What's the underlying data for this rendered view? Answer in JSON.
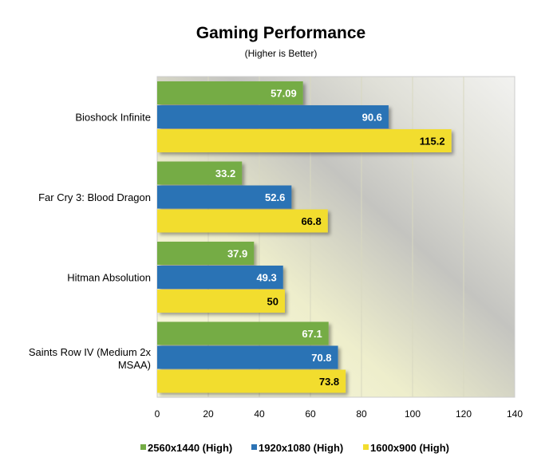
{
  "chart_data": {
    "type": "bar",
    "orientation": "horizontal",
    "title": "Gaming Performance",
    "subtitle": "(Higher is Better)",
    "categories": [
      "Bioshock Infinite",
      "Far Cry 3: Blood Dragon",
      "Hitman Absolution",
      "Saints Row IV (Medium 2x MSAA)"
    ],
    "series": [
      {
        "name": "2560x1440 (High)",
        "color": "#74ac45",
        "values": [
          57.09,
          33.2,
          37.9,
          67.1
        ]
      },
      {
        "name": "1920x1080 (High)",
        "color": "#2c73b5",
        "values": [
          90.6,
          52.6,
          49.3,
          70.8
        ]
      },
      {
        "name": "1600x900 (High)",
        "color": "#f2dd2e",
        "values": [
          115.2,
          66.8,
          50,
          73.8
        ]
      }
    ],
    "xlim": [
      0,
      140
    ],
    "xticks": [
      "0",
      "20",
      "40",
      "60",
      "80",
      "100",
      "120",
      "140"
    ],
    "grid": true,
    "legend": "bottom"
  }
}
